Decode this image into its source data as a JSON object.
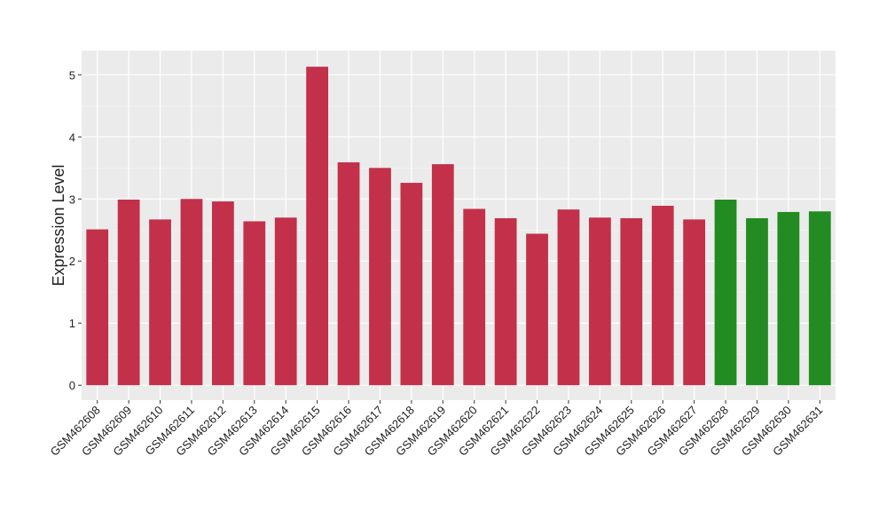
{
  "chart_data": {
    "type": "bar",
    "y_label": "Expression Level",
    "categories": [
      "GSM462608",
      "GSM462609",
      "GSM462610",
      "GSM462611",
      "GSM462612",
      "GSM462613",
      "GSM462614",
      "GSM462615",
      "GSM462616",
      "GSM462617",
      "GSM462618",
      "GSM462619",
      "GSM462620",
      "GSM462621",
      "GSM462622",
      "GSM462623",
      "GSM462624",
      "GSM462625",
      "GSM462626",
      "GSM462627",
      "GSM462628",
      "GSM462629",
      "GSM462630",
      "GSM462631"
    ],
    "values": [
      2.51,
      2.99,
      2.67,
      3.0,
      2.96,
      2.64,
      2.7,
      5.13,
      3.59,
      3.5,
      3.26,
      3.56,
      2.84,
      2.69,
      2.44,
      2.83,
      2.7,
      2.69,
      2.89,
      2.67,
      2.99,
      2.69,
      2.79,
      2.8
    ],
    "colors": [
      "#c3304a",
      "#c3304a",
      "#c3304a",
      "#c3304a",
      "#c3304a",
      "#c3304a",
      "#c3304a",
      "#c3304a",
      "#c3304a",
      "#c3304a",
      "#c3304a",
      "#c3304a",
      "#c3304a",
      "#c3304a",
      "#c3304a",
      "#c3304a",
      "#c3304a",
      "#c3304a",
      "#c3304a",
      "#c3304a",
      "#228b22",
      "#228b22",
      "#228b22",
      "#228b22"
    ],
    "ylim": [
      -0.24,
      5.39
    ],
    "yticks": [
      0,
      1,
      2,
      3,
      4,
      5
    ],
    "grid": true
  }
}
